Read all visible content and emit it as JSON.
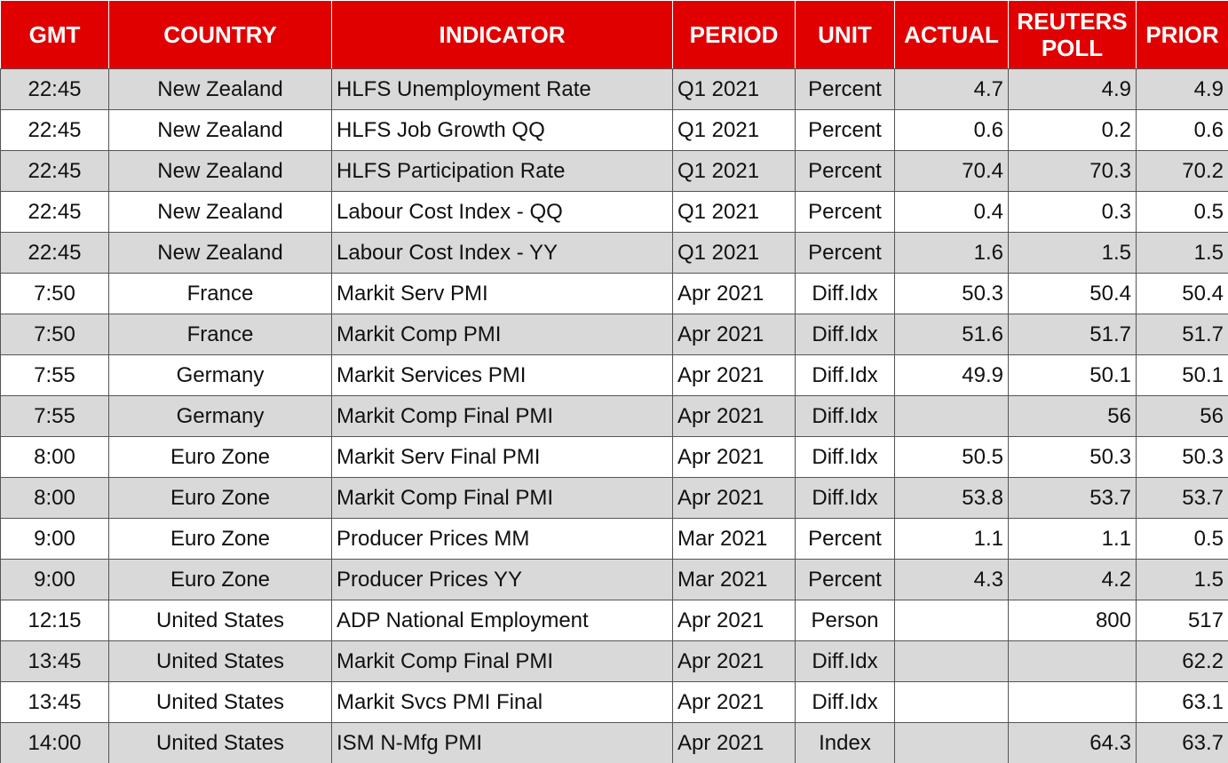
{
  "table": {
    "header": [
      "GMT",
      "COUNTRY",
      "INDICATOR",
      "PERIOD",
      "UNIT",
      "ACTUAL",
      "REUTERS POLL",
      "PRIOR"
    ],
    "rows": [
      [
        "22:45",
        "New Zealand",
        "HLFS Unemployment Rate",
        "Q1 2021",
        "Percent",
        4.7,
        4.9,
        4.9
      ],
      [
        "22:45",
        "New Zealand",
        "HLFS Job Growth QQ",
        "Q1 2021",
        "Percent",
        0.6,
        0.2,
        0.6
      ],
      [
        "22:45",
        "New Zealand",
        "HLFS Participation Rate",
        "Q1 2021",
        "Percent",
        70.4,
        70.3,
        70.2
      ],
      [
        "22:45",
        "New Zealand",
        "Labour Cost Index - QQ",
        "Q1 2021",
        "Percent",
        0.4,
        0.3,
        0.5
      ],
      [
        "22:45",
        "New Zealand",
        "Labour Cost Index - YY",
        "Q1 2021",
        "Percent",
        1.6,
        1.5,
        1.5
      ],
      [
        "7:50",
        "France",
        "Markit Serv PMI",
        "Apr 2021",
        "Diff.Idx",
        50.3,
        50.4,
        50.4
      ],
      [
        "7:50",
        "France",
        "Markit Comp PMI",
        "Apr 2021",
        "Diff.Idx",
        51.6,
        51.7,
        51.7
      ],
      [
        "7:55",
        "Germany",
        "Markit Services PMI",
        "Apr 2021",
        "Diff.Idx",
        49.9,
        50.1,
        50.1
      ],
      [
        "7:55",
        "Germany",
        "Markit Comp Final PMI",
        "Apr 2021",
        "Diff.Idx",
        null,
        56,
        56
      ],
      [
        "8:00",
        "Euro Zone",
        "Markit Serv Final PMI",
        "Apr 2021",
        "Diff.Idx",
        50.5,
        50.3,
        50.3
      ],
      [
        "8:00",
        "Euro Zone",
        "Markit Comp Final PMI",
        "Apr 2021",
        "Diff.Idx",
        53.8,
        53.7,
        53.7
      ],
      [
        "9:00",
        "Euro Zone",
        "Producer Prices MM",
        "Mar 2021",
        "Percent",
        1.1,
        1.1,
        0.5
      ],
      [
        "9:00",
        "Euro Zone",
        "Producer Prices YY",
        "Mar 2021",
        "Percent",
        4.3,
        4.2,
        1.5
      ],
      [
        "12:15",
        "United States",
        "ADP National Employment",
        "Apr 2021",
        "Person",
        null,
        800,
        517
      ],
      [
        "13:45",
        "United States",
        "Markit Comp Final PMI",
        "Apr 2021",
        "Diff.Idx",
        null,
        null,
        62.2
      ],
      [
        "13:45",
        "United States",
        "Markit Svcs PMI Final",
        "Apr 2021",
        "Diff.Idx",
        null,
        null,
        63.1
      ],
      [
        "14:00",
        "United States",
        "ISM N-Mfg PMI",
        "Apr 2021",
        "Index",
        null,
        64.3,
        63.7
      ]
    ]
  }
}
